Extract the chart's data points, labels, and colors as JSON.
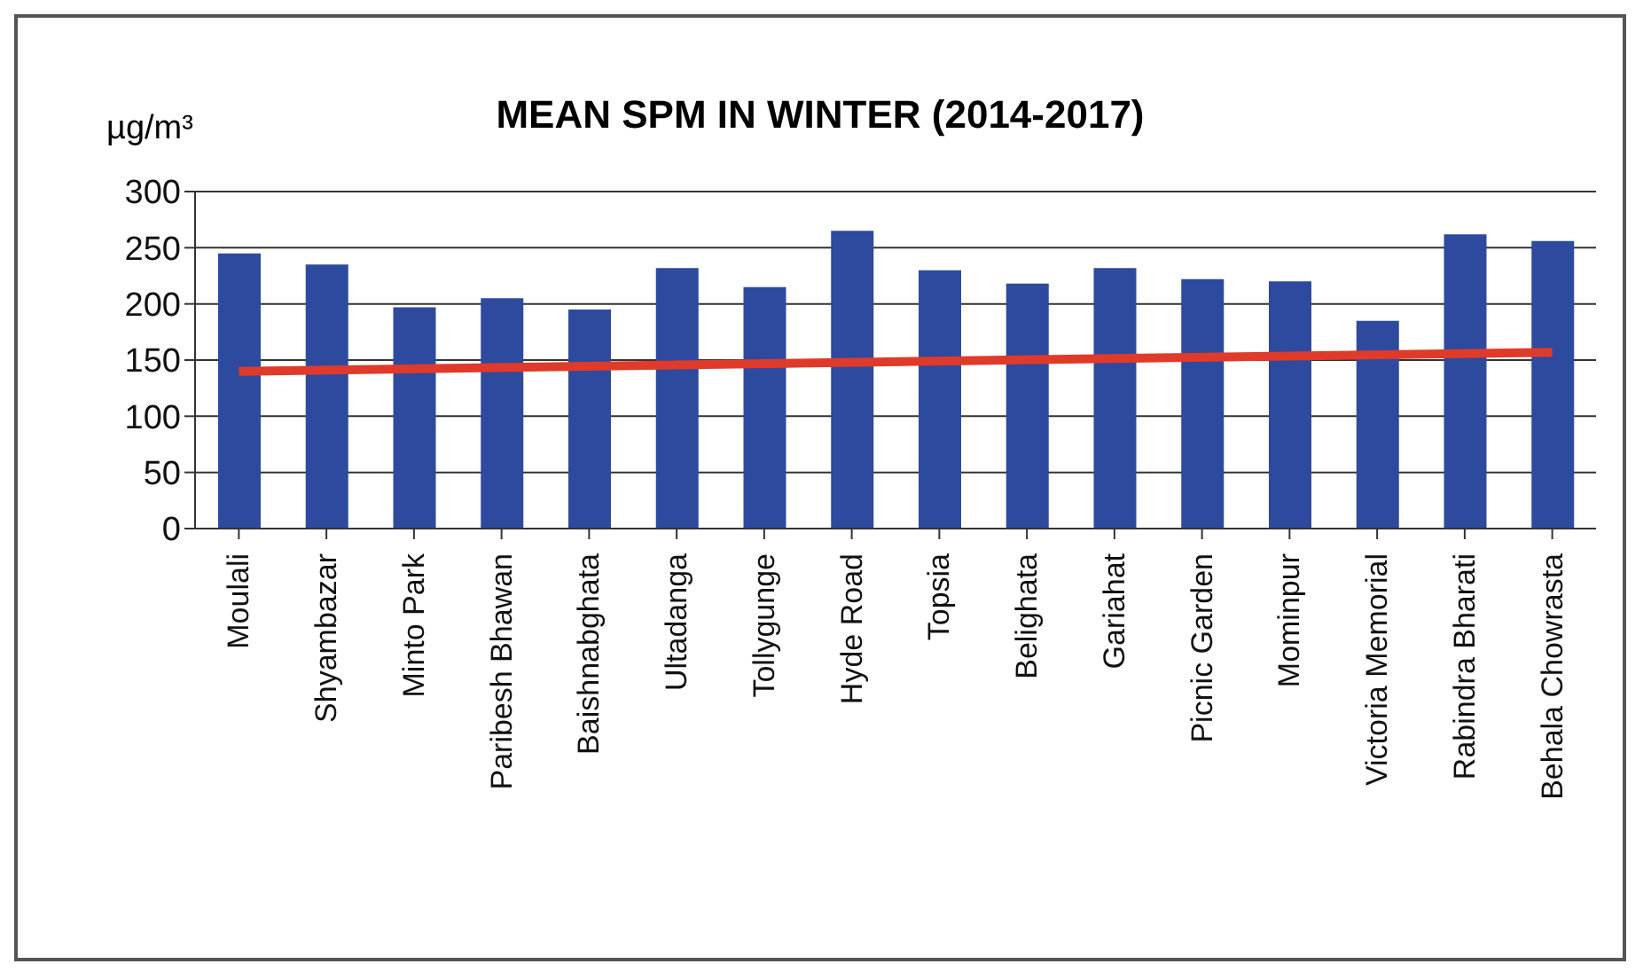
{
  "chart_data": {
    "type": "bar",
    "title": "MEAN SPM IN WINTER (2014-2017)",
    "ylabel": "µg/m³",
    "categories": [
      "Moulali",
      "Shyambazar",
      "Minto Park",
      "Paribesh Bhawan",
      "Baishnabghata",
      "Ultadanga",
      "Tollygunge",
      "Hyde Road",
      "Topsia",
      "Belighata",
      "Gariahat",
      "Picnic Garden",
      "Mominpur",
      "Victoria Memorial",
      "Rabindra Bharati",
      "Behala Chowrasta"
    ],
    "series": [
      {
        "color": "#2e4a9e",
        "values": [
          245,
          235,
          197,
          205,
          195,
          232,
          215,
          265,
          230,
          218,
          232,
          222,
          220,
          185,
          262,
          256
        ]
      },
      {
        "type": "line",
        "color": "#e03a2a",
        "x": [
          "Moulali",
          "Behala Chowrasta"
        ],
        "values": [
          140,
          157
        ]
      }
    ],
    "ylim": [
      0,
      300
    ],
    "yticks": [
      0,
      50,
      100,
      150,
      200,
      250,
      300
    ],
    "grid": "y",
    "legend": false
  }
}
